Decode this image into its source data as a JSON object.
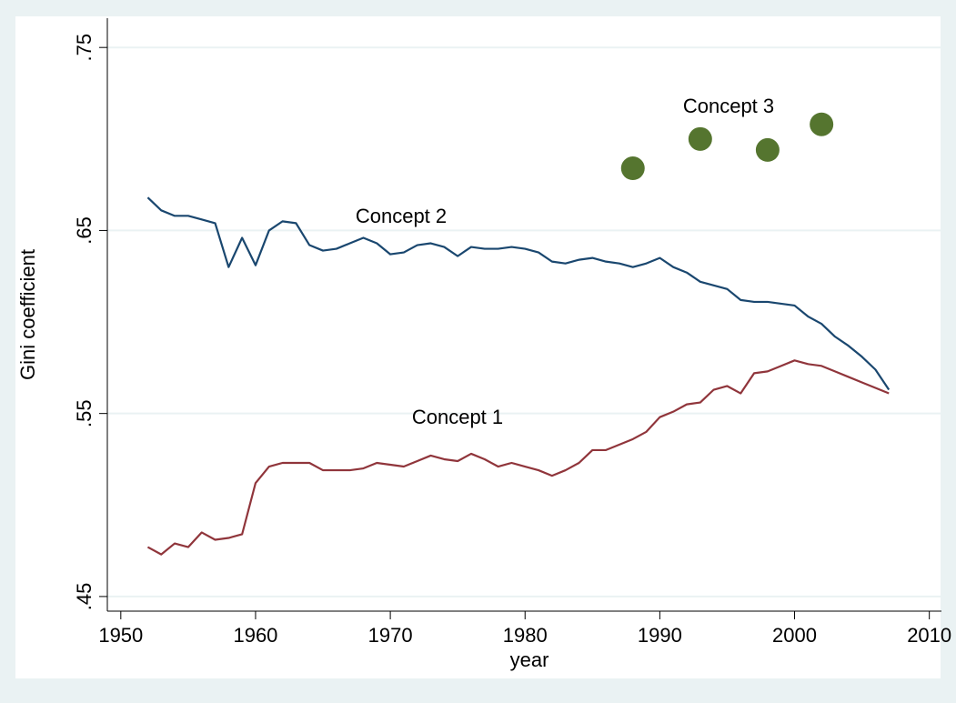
{
  "chart_data": {
    "type": "line",
    "x_label": "year",
    "y_label": "Gini coefficient",
    "x": [
      1952,
      1953,
      1954,
      1955,
      1956,
      1957,
      1958,
      1959,
      1960,
      1961,
      1962,
      1963,
      1964,
      1965,
      1966,
      1967,
      1968,
      1969,
      1970,
      1971,
      1972,
      1973,
      1974,
      1975,
      1976,
      1977,
      1978,
      1979,
      1980,
      1981,
      1982,
      1983,
      1984,
      1985,
      1986,
      1987,
      1988,
      1989,
      1990,
      1991,
      1992,
      1993,
      1994,
      1995,
      1996,
      1997,
      1998,
      1999,
      2000,
      2001,
      2002,
      2003,
      2004,
      2005,
      2006,
      2007
    ],
    "series": [
      {
        "name": "Concept 1",
        "color": "#90353b",
        "values": [
          0.477,
          0.473,
          0.479,
          0.477,
          0.485,
          0.481,
          0.482,
          0.484,
          0.512,
          0.521,
          0.523,
          0.523,
          0.523,
          0.519,
          0.519,
          0.519,
          0.52,
          0.523,
          0.522,
          0.521,
          0.524,
          0.527,
          0.525,
          0.524,
          0.528,
          0.525,
          0.521,
          0.523,
          0.521,
          0.519,
          0.516,
          0.519,
          0.523,
          0.53,
          0.53,
          0.533,
          0.536,
          0.54,
          0.548,
          0.551,
          0.555,
          0.556,
          0.563,
          0.565,
          0.561,
          0.572,
          0.573,
          0.576,
          0.579,
          0.577,
          0.576,
          0.573,
          0.57,
          0.567,
          0.564,
          0.561
        ]
      },
      {
        "name": "Concept 2",
        "color": "#1a476f",
        "values": [
          0.668,
          0.661,
          0.658,
          0.658,
          0.656,
          0.654,
          0.63,
          0.646,
          0.631,
          0.65,
          0.655,
          0.654,
          0.642,
          0.639,
          0.64,
          0.643,
          0.646,
          0.643,
          0.637,
          0.638,
          0.642,
          0.643,
          0.641,
          0.636,
          0.641,
          0.64,
          0.64,
          0.641,
          0.64,
          0.638,
          0.633,
          0.632,
          0.634,
          0.635,
          0.633,
          0.632,
          0.63,
          0.632,
          0.635,
          0.63,
          0.627,
          0.622,
          0.62,
          0.618,
          0.612,
          0.611,
          0.611,
          0.61,
          0.609,
          0.603,
          0.599,
          0.592,
          0.587,
          0.581,
          0.574,
          0.563
        ]
      }
    ],
    "points": {
      "name": "Concept 3",
      "color": "#55752f",
      "x": [
        1988,
        1993,
        1998,
        2002
      ],
      "values": [
        0.684,
        0.7,
        0.694,
        0.708
      ]
    },
    "xlim": [
      1949,
      2010.9
    ],
    "ylim": [
      0.442,
      0.766
    ],
    "xticks": [
      1950,
      1960,
      1970,
      1980,
      1990,
      2000,
      2010
    ],
    "yticks": [
      {
        "value": 0.45,
        "label": ".45"
      },
      {
        "value": 0.55,
        "label": ".55"
      },
      {
        "value": 0.65,
        "label": ".65"
      },
      {
        "value": 0.75,
        "label": ".75"
      }
    ],
    "grid": true
  }
}
